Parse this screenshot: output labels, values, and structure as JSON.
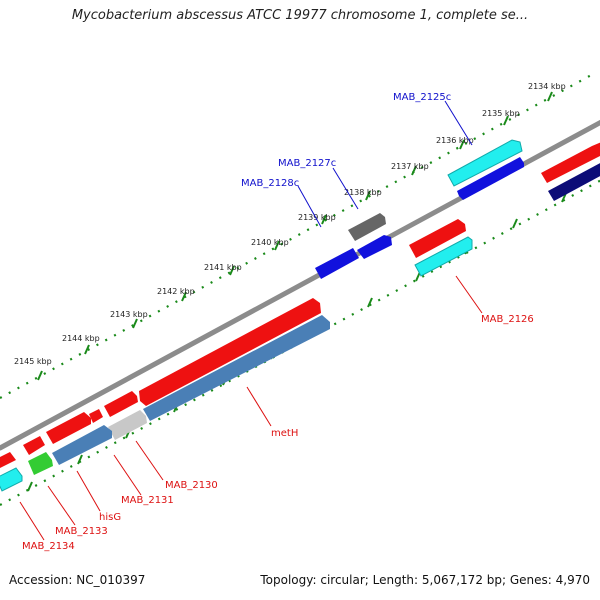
{
  "title": "Mycobacterium abscessus ATCC 19977 chromosome 1, complete se...",
  "footer": {
    "accession": "Accession: NC_010397",
    "stats": "Topology: circular; Length: 5,067,172 bp; Genes: 4,970"
  },
  "colors": {
    "backbone": "#8c8c8c",
    "ruler_ticks": "#1a8a1a",
    "forward_cds": "#ee1111",
    "reverse_cds": "#1111dd",
    "rna": "#22dddd",
    "label_forward": "#dd1111",
    "label_reverse": "#1111cc"
  },
  "ruler_labels": [
    "2134 kbp",
    "2135 kbp",
    "2136 kbp",
    "2137 kbp",
    "2138 kbp",
    "2139 kbp",
    "2140 kbp",
    "2141 kbp",
    "2142 kbp",
    "2143 kbp",
    "2144 kbp",
    "2145 kbp"
  ],
  "gene_labels": {
    "mab_2125c": "MAB_2125c",
    "mab_2126": "MAB_2126",
    "mab_2127c": "MAB_2127c",
    "mab_2128c": "MAB_2128c",
    "meth": "metH",
    "mab_2130": "MAB_2130",
    "mab_2131": "MAB_2131",
    "hisg": "hisG",
    "mab_2133": "MAB_2133",
    "mab_2134": "MAB_2134"
  }
}
